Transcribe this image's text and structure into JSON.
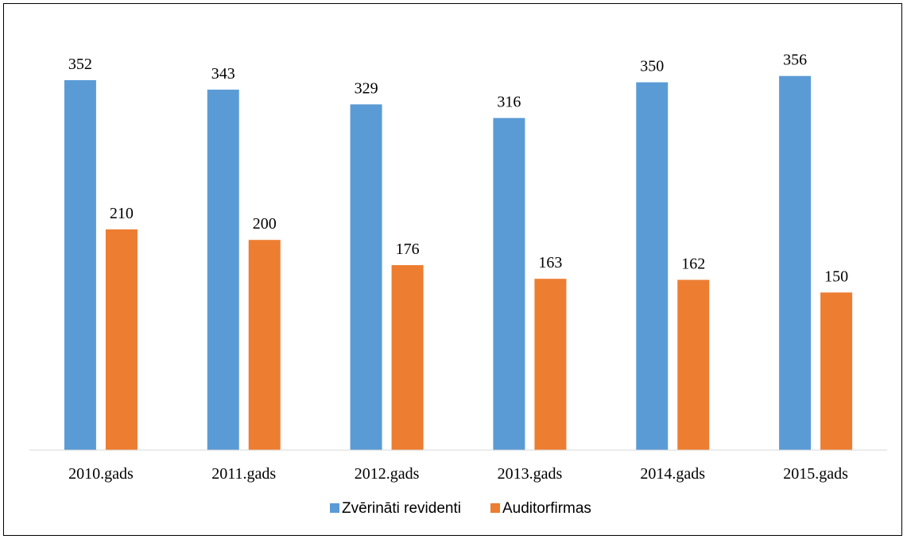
{
  "chart_data": {
    "type": "bar",
    "categories": [
      "2010.gads",
      "2011.gads",
      "2012.gads",
      "2013.gads",
      "2014.gads",
      "2015.gads"
    ],
    "series": [
      {
        "name": "Zvērināti revidenti",
        "color": "#5B9BD5",
        "values": [
          352,
          343,
          329,
          316,
          350,
          356
        ]
      },
      {
        "name": "Auditorfirmas",
        "color": "#ED7D31",
        "values": [
          210,
          200,
          176,
          163,
          162,
          150
        ]
      }
    ],
    "ylim": [
      0,
      400
    ],
    "grid": false,
    "legend_position": "bottom",
    "data_labels": true
  }
}
